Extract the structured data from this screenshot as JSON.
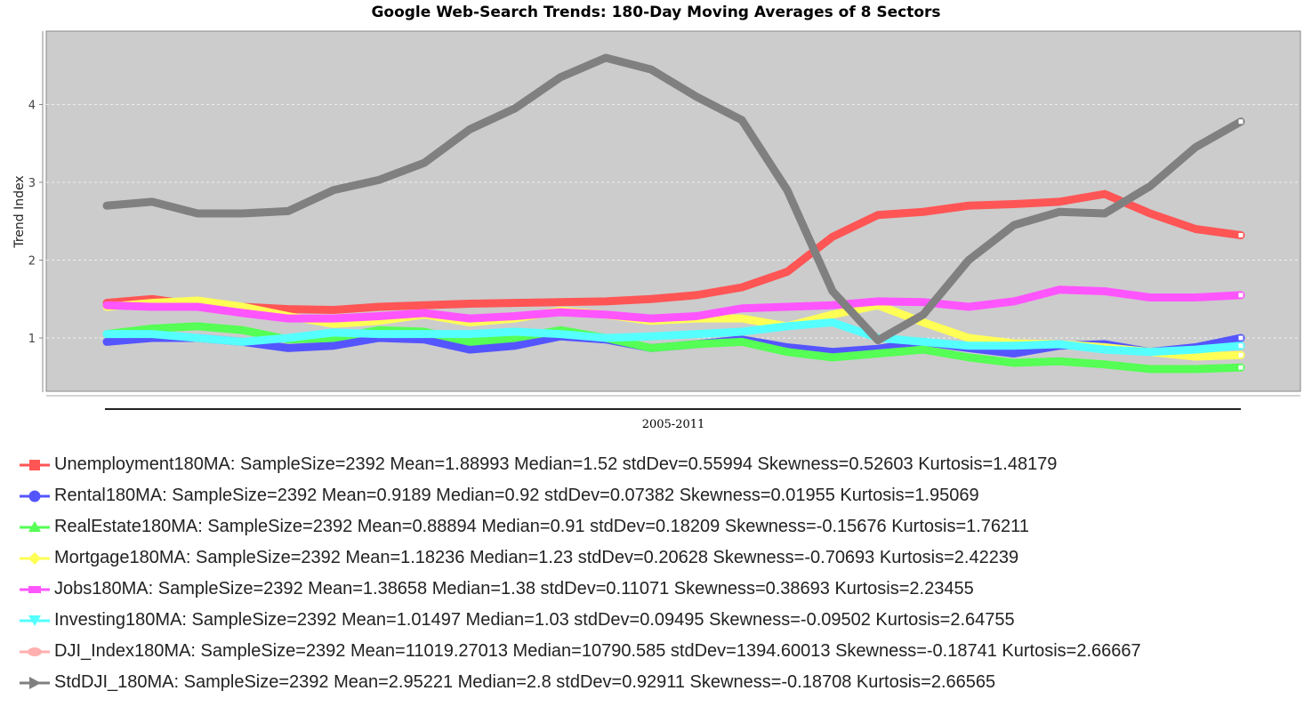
{
  "chart_data": {
    "type": "line",
    "title": "Google Web-Search Trends: 180-Day Moving Averages of 8 Sectors",
    "xlabel": "2005-2011",
    "ylabel": "Trend Index",
    "yticks": [
      "1",
      "2",
      "3",
      "4"
    ],
    "ylim": [
      0.31,
      4.94
    ],
    "grid": true,
    "legend": "bottom",
    "background": "#cccccc",
    "series": [
      {
        "name": "Unemployment180MA",
        "color": "#ff5555",
        "marker": "square",
        "legend_text": "Unemployment180MA: SampleSize=2392 Mean=1.88993 Median=1.52 stdDev=0.55994 Skewness=0.52603 Kurtosis=1.48179",
        "values": [
          1.45,
          1.5,
          1.42,
          1.4,
          1.37,
          1.36,
          1.4,
          1.42,
          1.44,
          1.45,
          1.46,
          1.47,
          1.5,
          1.55,
          1.65,
          1.85,
          2.3,
          2.58,
          2.62,
          2.7,
          2.72,
          2.75,
          2.85,
          2.6,
          2.4,
          2.32
        ]
      },
      {
        "name": "Rental180MA",
        "color": "#5555ff",
        "marker": "circle",
        "legend_text": "Rental180MA: SampleSize=2392 Mean=0.9189 Median=0.92 stdDev=0.07382 Skewness=0.01955 Kurtosis=1.95069",
        "values": [
          0.95,
          1.0,
          1.0,
          0.95,
          0.87,
          0.9,
          1.0,
          0.98,
          0.85,
          0.9,
          1.02,
          0.98,
          0.87,
          0.92,
          0.98,
          0.88,
          0.82,
          0.86,
          0.95,
          0.87,
          0.8,
          0.9,
          0.92,
          0.82,
          0.88,
          1.0
        ]
      },
      {
        "name": "RealEstate180MA",
        "color": "#55ff55",
        "marker": "triangle-up",
        "legend_text": "RealEstate180MA: SampleSize=2392 Mean=0.88894 Median=0.91 stdDev=0.18209 Skewness=-0.15676 Kurtosis=1.76211",
        "values": [
          1.05,
          1.12,
          1.15,
          1.1,
          0.98,
          1.0,
          1.1,
          1.08,
          0.95,
          1.0,
          1.1,
          1.0,
          0.87,
          0.92,
          0.95,
          0.82,
          0.75,
          0.8,
          0.85,
          0.75,
          0.68,
          0.7,
          0.66,
          0.6,
          0.6,
          0.62
        ]
      },
      {
        "name": "Mortgage180MA",
        "color": "#ffff55",
        "marker": "diamond",
        "legend_text": "Mortgage180MA: SampleSize=2392 Mean=1.18236 Median=1.23 stdDev=0.20628 Skewness=-0.70693 Kurtosis=2.42239",
        "values": [
          1.4,
          1.45,
          1.48,
          1.4,
          1.28,
          1.18,
          1.22,
          1.3,
          1.2,
          1.25,
          1.35,
          1.3,
          1.22,
          1.25,
          1.25,
          1.15,
          1.3,
          1.42,
          1.2,
          1.0,
          0.93,
          0.92,
          0.88,
          0.82,
          0.76,
          0.78
        ]
      },
      {
        "name": "Jobs180MA",
        "color": "#ff55ff",
        "marker": "rect",
        "legend_text": "Jobs180MA: SampleSize=2392 Mean=1.38658 Median=1.38 stdDev=0.11071 Skewness=0.38693 Kurtosis=2.23455",
        "values": [
          1.42,
          1.4,
          1.4,
          1.32,
          1.25,
          1.25,
          1.28,
          1.32,
          1.25,
          1.28,
          1.33,
          1.3,
          1.25,
          1.28,
          1.38,
          1.4,
          1.42,
          1.47,
          1.46,
          1.4,
          1.47,
          1.62,
          1.6,
          1.52,
          1.52,
          1.55
        ]
      },
      {
        "name": "Investing180MA",
        "color": "#55ffff",
        "marker": "triangle-down",
        "legend_text": "Investing180MA: SampleSize=2392 Mean=1.01497 Median=1.03 stdDev=0.09495 Skewness=-0.09502 Kurtosis=2.64755",
        "values": [
          1.05,
          1.05,
          1.0,
          0.95,
          1.0,
          1.07,
          1.05,
          1.05,
          1.05,
          1.08,
          1.05,
          1.0,
          1.02,
          1.05,
          1.08,
          1.15,
          1.2,
          1.0,
          0.95,
          0.9,
          0.9,
          0.92,
          0.85,
          0.82,
          0.85,
          0.9
        ]
      },
      {
        "name": "DJI_Index180MA",
        "color": "#ffafaf",
        "marker": "ellipse",
        "legend_text": "DJI_Index180MA: SampleSize=2392 Mean=11019.27013 Median=10790.585 stdDev=1394.60013 Skewness=-0.18741 Kurtosis=2.66667",
        "values": []
      },
      {
        "name": "StdDJI_180MA",
        "color": "#808080",
        "marker": "triangle-right",
        "legend_text": "StdDJI_180MA: SampleSize=2392 Mean=2.95221 Median=2.8 stdDev=0.92911 Skewness=-0.18708 Kurtosis=2.66565",
        "values": [
          2.7,
          2.75,
          2.6,
          2.6,
          2.63,
          2.9,
          3.03,
          3.25,
          3.68,
          3.95,
          4.35,
          4.6,
          4.45,
          4.1,
          3.8,
          2.9,
          1.6,
          0.97,
          1.3,
          2.0,
          2.45,
          2.62,
          2.6,
          2.95,
          3.45,
          3.78
        ]
      }
    ]
  }
}
